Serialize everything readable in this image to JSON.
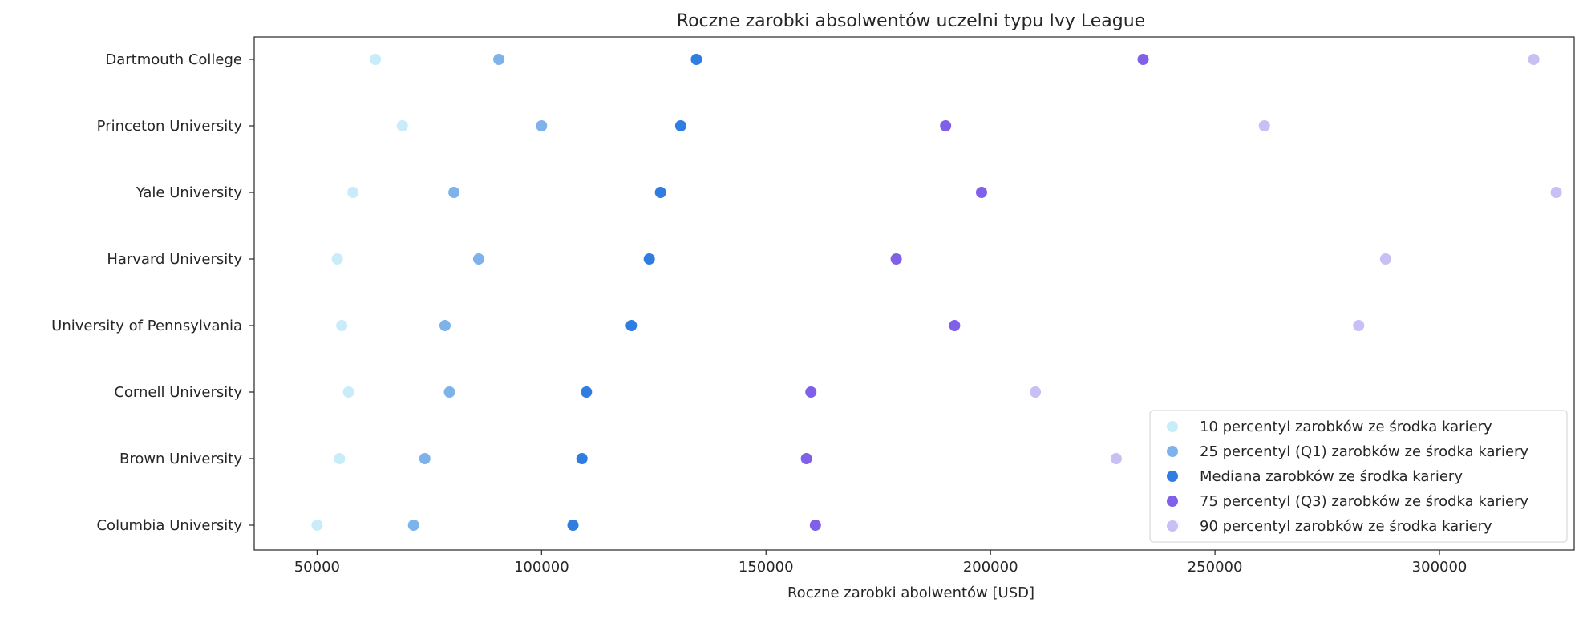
{
  "chart_data": {
    "type": "scatter",
    "title": "Roczne zarobki absolwentów uczelni typu Ivy League",
    "xlabel": "Roczne zarobki abolwentów [USD]",
    "ylabel": "",
    "xlim": [
      36000,
      330000
    ],
    "xticks": [
      50000,
      100000,
      150000,
      200000,
      250000,
      300000
    ],
    "categories": [
      "Dartmouth College",
      "Princeton University",
      "Yale University",
      "Harvard University",
      "University of Pennsylvania",
      "Cornell University",
      "Brown University",
      "Columbia University"
    ],
    "series": [
      {
        "name": "10 percentyl zarobków ze środka kariery",
        "color": "#c9ecfa",
        "values": [
          63000,
          69000,
          58000,
          54500,
          55500,
          57000,
          55000,
          50000
        ]
      },
      {
        "name": "25 percentyl (Q1) zarobków ze środka kariery",
        "color": "#7db3ea",
        "values": [
          90500,
          100000,
          80500,
          86000,
          78500,
          79500,
          74000,
          71500
        ]
      },
      {
        "name": "Mediana zarobków ze środka kariery",
        "color": "#2f7de1",
        "values": [
          134500,
          131000,
          126500,
          124000,
          120000,
          110000,
          109000,
          107000
        ]
      },
      {
        "name": "75 percentyl (Q3) zarobków ze środka kariery",
        "color": "#8060e8",
        "values": [
          234000,
          190000,
          198000,
          179000,
          192000,
          160000,
          159000,
          161000
        ]
      },
      {
        "name": "90 percentyl zarobków ze środka kariery",
        "color": "#c9bff5",
        "values": [
          321000,
          261000,
          326000,
          288000,
          282000,
          210000,
          228000,
          241000
        ]
      }
    ],
    "legend_position": "lower-right",
    "grid": false
  }
}
